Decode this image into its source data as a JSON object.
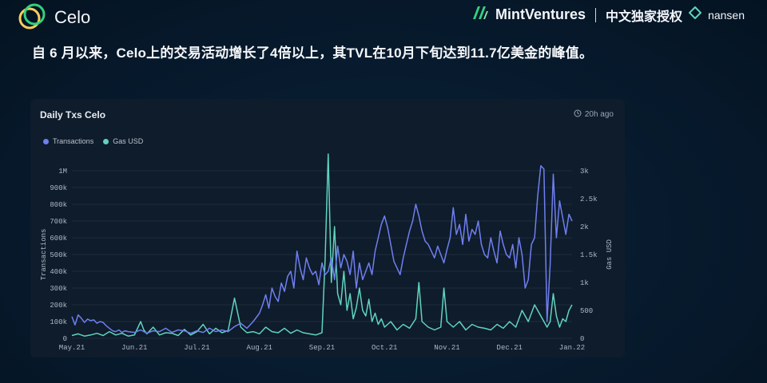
{
  "header": {
    "celo_logo_text": "Celo",
    "mint_brand": "MintVentures",
    "authorization": "中文独家授权",
    "nansen_brand": "nansen"
  },
  "headline": "自 6 月以来，Celo上的交易活动增长了4倍以上，其TVL在10月下旬达到11.7亿美金的峰值。",
  "panel": {
    "title": "Daily Txs Celo",
    "timestamp": "20h ago"
  },
  "colors": {
    "transactions": "#6f7ff0",
    "gas": "#5fd4bd",
    "background": "#071a2b",
    "panel": "#0f1c2b"
  },
  "chart_data": {
    "type": "line",
    "title": "Daily Txs Celo",
    "xlabel": "",
    "ylabel_left": "Transactions",
    "ylabel_right": "Gas USD",
    "x_tick_labels": [
      "May.21",
      "Jun.21",
      "Jul.21",
      "Aug.21",
      "Sep.21",
      "Oct.21",
      "Nov.21",
      "Dec.21",
      "Jan.22"
    ],
    "y_left_ticks": [
      "0",
      "100k",
      "200k",
      "300k",
      "400k",
      "500k",
      "600k",
      "700k",
      "800k",
      "900k",
      "1M"
    ],
    "y_right_ticks": [
      "0",
      "500",
      "1k",
      "1.5k",
      "2k",
      "2.5k",
      "3k"
    ],
    "y_left_range": [
      0,
      1000000
    ],
    "y_right_range": [
      0,
      3000
    ],
    "x_range": [
      0,
      8
    ],
    "grid": "horizontal",
    "legend_position": "top-left",
    "series": [
      {
        "name": "Transactions",
        "axis": "left",
        "points": [
          [
            0.0,
            130000
          ],
          [
            0.05,
            80000
          ],
          [
            0.1,
            140000
          ],
          [
            0.15,
            120000
          ],
          [
            0.2,
            95000
          ],
          [
            0.25,
            115000
          ],
          [
            0.3,
            105000
          ],
          [
            0.35,
            110000
          ],
          [
            0.4,
            90000
          ],
          [
            0.45,
            100000
          ],
          [
            0.5,
            95000
          ],
          [
            0.55,
            75000
          ],
          [
            0.6,
            60000
          ],
          [
            0.65,
            45000
          ],
          [
            0.7,
            40000
          ],
          [
            0.75,
            50000
          ],
          [
            0.8,
            35000
          ],
          [
            0.85,
            45000
          ],
          [
            0.9,
            40000
          ],
          [
            1.0,
            35000
          ],
          [
            1.1,
            50000
          ],
          [
            1.2,
            30000
          ],
          [
            1.3,
            45000
          ],
          [
            1.4,
            40000
          ],
          [
            1.5,
            60000
          ],
          [
            1.6,
            35000
          ],
          [
            1.7,
            50000
          ],
          [
            1.8,
            45000
          ],
          [
            1.9,
            30000
          ],
          [
            2.0,
            45000
          ],
          [
            2.1,
            35000
          ],
          [
            2.2,
            60000
          ],
          [
            2.3,
            40000
          ],
          [
            2.4,
            50000
          ],
          [
            2.5,
            40000
          ],
          [
            2.6,
            70000
          ],
          [
            2.7,
            90000
          ],
          [
            2.8,
            60000
          ],
          [
            2.9,
            100000
          ],
          [
            3.0,
            150000
          ],
          [
            3.05,
            200000
          ],
          [
            3.1,
            260000
          ],
          [
            3.15,
            180000
          ],
          [
            3.2,
            300000
          ],
          [
            3.25,
            250000
          ],
          [
            3.3,
            220000
          ],
          [
            3.35,
            330000
          ],
          [
            3.4,
            280000
          ],
          [
            3.45,
            370000
          ],
          [
            3.5,
            400000
          ],
          [
            3.55,
            300000
          ],
          [
            3.6,
            520000
          ],
          [
            3.65,
            420000
          ],
          [
            3.7,
            350000
          ],
          [
            3.75,
            480000
          ],
          [
            3.8,
            420000
          ],
          [
            3.85,
            380000
          ],
          [
            3.9,
            400000
          ],
          [
            3.95,
            320000
          ],
          [
            4.0,
            450000
          ],
          [
            4.05,
            380000
          ],
          [
            4.1,
            400000
          ],
          [
            4.15,
            480000
          ],
          [
            4.2,
            350000
          ],
          [
            4.25,
            550000
          ],
          [
            4.3,
            420000
          ],
          [
            4.35,
            500000
          ],
          [
            4.4,
            460000
          ],
          [
            4.45,
            380000
          ],
          [
            4.5,
            520000
          ],
          [
            4.55,
            300000
          ],
          [
            4.6,
            450000
          ],
          [
            4.65,
            350000
          ],
          [
            4.7,
            400000
          ],
          [
            4.75,
            450000
          ],
          [
            4.8,
            380000
          ],
          [
            4.85,
            520000
          ],
          [
            4.9,
            600000
          ],
          [
            4.95,
            680000
          ],
          [
            5.0,
            730000
          ],
          [
            5.05,
            660000
          ],
          [
            5.1,
            560000
          ],
          [
            5.15,
            460000
          ],
          [
            5.2,
            420000
          ],
          [
            5.25,
            380000
          ],
          [
            5.3,
            480000
          ],
          [
            5.35,
            560000
          ],
          [
            5.4,
            640000
          ],
          [
            5.45,
            700000
          ],
          [
            5.5,
            800000
          ],
          [
            5.55,
            730000
          ],
          [
            5.6,
            640000
          ],
          [
            5.65,
            580000
          ],
          [
            5.7,
            560000
          ],
          [
            5.75,
            520000
          ],
          [
            5.8,
            480000
          ],
          [
            5.85,
            550000
          ],
          [
            5.9,
            500000
          ],
          [
            5.95,
            450000
          ],
          [
            6.0,
            530000
          ],
          [
            6.05,
            600000
          ],
          [
            6.1,
            780000
          ],
          [
            6.15,
            620000
          ],
          [
            6.2,
            680000
          ],
          [
            6.25,
            560000
          ],
          [
            6.3,
            740000
          ],
          [
            6.35,
            580000
          ],
          [
            6.4,
            650000
          ],
          [
            6.45,
            620000
          ],
          [
            6.5,
            700000
          ],
          [
            6.55,
            560000
          ],
          [
            6.6,
            500000
          ],
          [
            6.65,
            480000
          ],
          [
            6.7,
            600000
          ],
          [
            6.75,
            520000
          ],
          [
            6.8,
            450000
          ],
          [
            6.85,
            640000
          ],
          [
            6.9,
            560000
          ],
          [
            6.95,
            500000
          ],
          [
            7.0,
            480000
          ],
          [
            7.05,
            560000
          ],
          [
            7.1,
            420000
          ],
          [
            7.15,
            600000
          ],
          [
            7.2,
            500000
          ],
          [
            7.25,
            300000
          ],
          [
            7.3,
            350000
          ],
          [
            7.35,
            560000
          ],
          [
            7.4,
            600000
          ],
          [
            7.45,
            850000
          ],
          [
            7.5,
            1030000
          ],
          [
            7.55,
            1010000
          ],
          [
            7.6,
            100000
          ],
          [
            7.65,
            440000
          ],
          [
            7.7,
            980000
          ],
          [
            7.75,
            600000
          ],
          [
            7.8,
            820000
          ],
          [
            7.85,
            720000
          ],
          [
            7.9,
            620000
          ],
          [
            7.95,
            740000
          ],
          [
            8.0,
            700000
          ]
        ]
      },
      {
        "name": "Gas USD",
        "axis": "right",
        "points": [
          [
            0.0,
            50
          ],
          [
            0.1,
            80
          ],
          [
            0.2,
            40
          ],
          [
            0.3,
            60
          ],
          [
            0.4,
            90
          ],
          [
            0.5,
            50
          ],
          [
            0.6,
            120
          ],
          [
            0.7,
            60
          ],
          [
            0.8,
            90
          ],
          [
            0.9,
            40
          ],
          [
            1.0,
            60
          ],
          [
            1.1,
            300
          ],
          [
            1.15,
            150
          ],
          [
            1.2,
            80
          ],
          [
            1.3,
            200
          ],
          [
            1.4,
            60
          ],
          [
            1.5,
            100
          ],
          [
            1.6,
            90
          ],
          [
            1.7,
            50
          ],
          [
            1.8,
            160
          ],
          [
            1.9,
            60
          ],
          [
            2.0,
            120
          ],
          [
            2.1,
            250
          ],
          [
            2.2,
            80
          ],
          [
            2.3,
            180
          ],
          [
            2.4,
            100
          ],
          [
            2.5,
            140
          ],
          [
            2.6,
            720
          ],
          [
            2.7,
            200
          ],
          [
            2.8,
            100
          ],
          [
            2.9,
            120
          ],
          [
            3.0,
            80
          ],
          [
            3.1,
            200
          ],
          [
            3.2,
            120
          ],
          [
            3.3,
            100
          ],
          [
            3.4,
            180
          ],
          [
            3.5,
            90
          ],
          [
            3.6,
            150
          ],
          [
            3.7,
            100
          ],
          [
            3.8,
            80
          ],
          [
            3.9,
            60
          ],
          [
            4.0,
            100
          ],
          [
            4.05,
            1400
          ],
          [
            4.1,
            3300
          ],
          [
            4.15,
            1000
          ],
          [
            4.2,
            2000
          ],
          [
            4.25,
            800
          ],
          [
            4.3,
            600
          ],
          [
            4.35,
            1200
          ],
          [
            4.4,
            500
          ],
          [
            4.45,
            800
          ],
          [
            4.5,
            350
          ],
          [
            4.55,
            550
          ],
          [
            4.6,
            900
          ],
          [
            4.65,
            500
          ],
          [
            4.7,
            400
          ],
          [
            4.75,
            700
          ],
          [
            4.8,
            300
          ],
          [
            4.85,
            450
          ],
          [
            4.9,
            250
          ],
          [
            4.95,
            350
          ],
          [
            5.0,
            200
          ],
          [
            5.1,
            300
          ],
          [
            5.2,
            150
          ],
          [
            5.3,
            250
          ],
          [
            5.4,
            180
          ],
          [
            5.5,
            350
          ],
          [
            5.55,
            1000
          ],
          [
            5.6,
            300
          ],
          [
            5.7,
            200
          ],
          [
            5.8,
            150
          ],
          [
            5.9,
            200
          ],
          [
            5.95,
            900
          ],
          [
            6.0,
            300
          ],
          [
            6.1,
            200
          ],
          [
            6.2,
            300
          ],
          [
            6.3,
            150
          ],
          [
            6.4,
            250
          ],
          [
            6.5,
            200
          ],
          [
            6.6,
            180
          ],
          [
            6.7,
            150
          ],
          [
            6.8,
            250
          ],
          [
            6.9,
            180
          ],
          [
            7.0,
            300
          ],
          [
            7.1,
            200
          ],
          [
            7.2,
            500
          ],
          [
            7.3,
            300
          ],
          [
            7.4,
            600
          ],
          [
            7.5,
            400
          ],
          [
            7.6,
            200
          ],
          [
            7.65,
            300
          ],
          [
            7.7,
            800
          ],
          [
            7.75,
            400
          ],
          [
            7.8,
            200
          ],
          [
            7.85,
            350
          ],
          [
            7.9,
            300
          ],
          [
            7.95,
            500
          ],
          [
            8.0,
            600
          ]
        ]
      }
    ]
  }
}
